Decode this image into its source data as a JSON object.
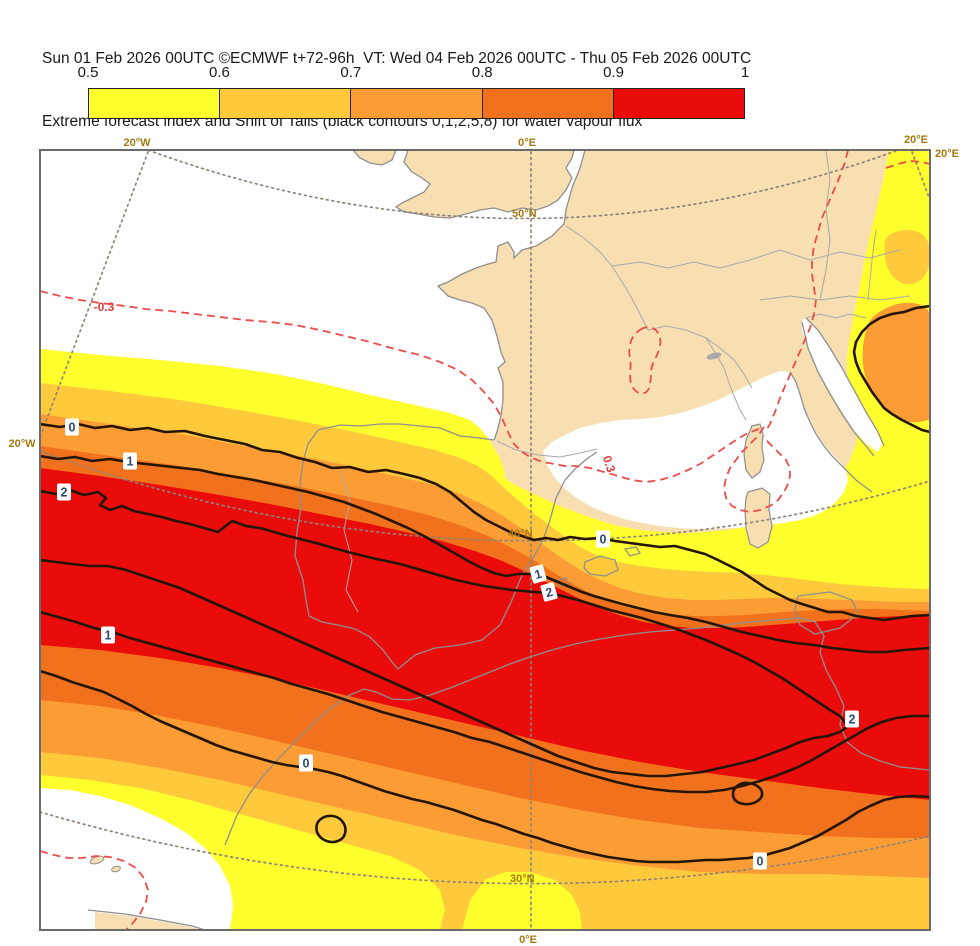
{
  "header": {
    "line1": "Sun 01 Feb 2026 00UTC ©ECMWF t+72-96h  VT: Wed 04 Feb 2026 00UTC - Thu 05 Feb 2026 00UTC",
    "line2": "Extreme forecast index and Shift of Tails (black contours 0,1,2,5,8) for water vapour flux"
  },
  "colorbar": {
    "ticks": [
      "0.5",
      "0.6",
      "0.7",
      "0.8",
      "0.9",
      "1"
    ],
    "colors": [
      "#ffff2e",
      "#ffc93c",
      "#fb9c35",
      "#f2711c",
      "#ea0b0b"
    ]
  },
  "colors": {
    "band_05": "#ffff2e",
    "band_06": "#ffc93c",
    "band_07": "#fb9c35",
    "band_08": "#f2711c",
    "band_09": "#ea0b0b",
    "land": "#f7dfb2",
    "sea": "#ffffff",
    "coast": "#8f8f8f",
    "border": "#a9a9a9",
    "grid_dots": "#8d8577",
    "contour": "#241507",
    "dash_red": "#ef4b4b",
    "frame": "#6b6b6b"
  },
  "map": {
    "grid_labels": {
      "lon_20w_top": "20°W",
      "lon_0_top": "0°E",
      "lon_20e_top": "20°E",
      "lon_20e_right": "20°E",
      "lon_20w_left": "20°W",
      "lon_0_bottom": "0°E",
      "lat_50": "50°N",
      "lat_40": "40°N",
      "lat_30": "30°N"
    },
    "contour_labels": {
      "sot0": "0",
      "sot1": "1",
      "sot2": "2",
      "efi_neg": "-0.3",
      "efi_pos": "0.3"
    }
  },
  "map_data": {
    "type": "filled_contour_map",
    "field": "Extreme forecast index (EFI) for water vapour flux",
    "efi_shading_levels": [
      0.5,
      0.6,
      0.7,
      0.8,
      0.9,
      1
    ],
    "sot_black_contour_levels": [
      0,
      1,
      2,
      5,
      8
    ],
    "efi_dashed_red_contours": [
      -0.3,
      0.3
    ],
    "region": "Western Europe / NE Atlantic / western Mediterranean, approx 20W-20E, 30N-55N"
  }
}
